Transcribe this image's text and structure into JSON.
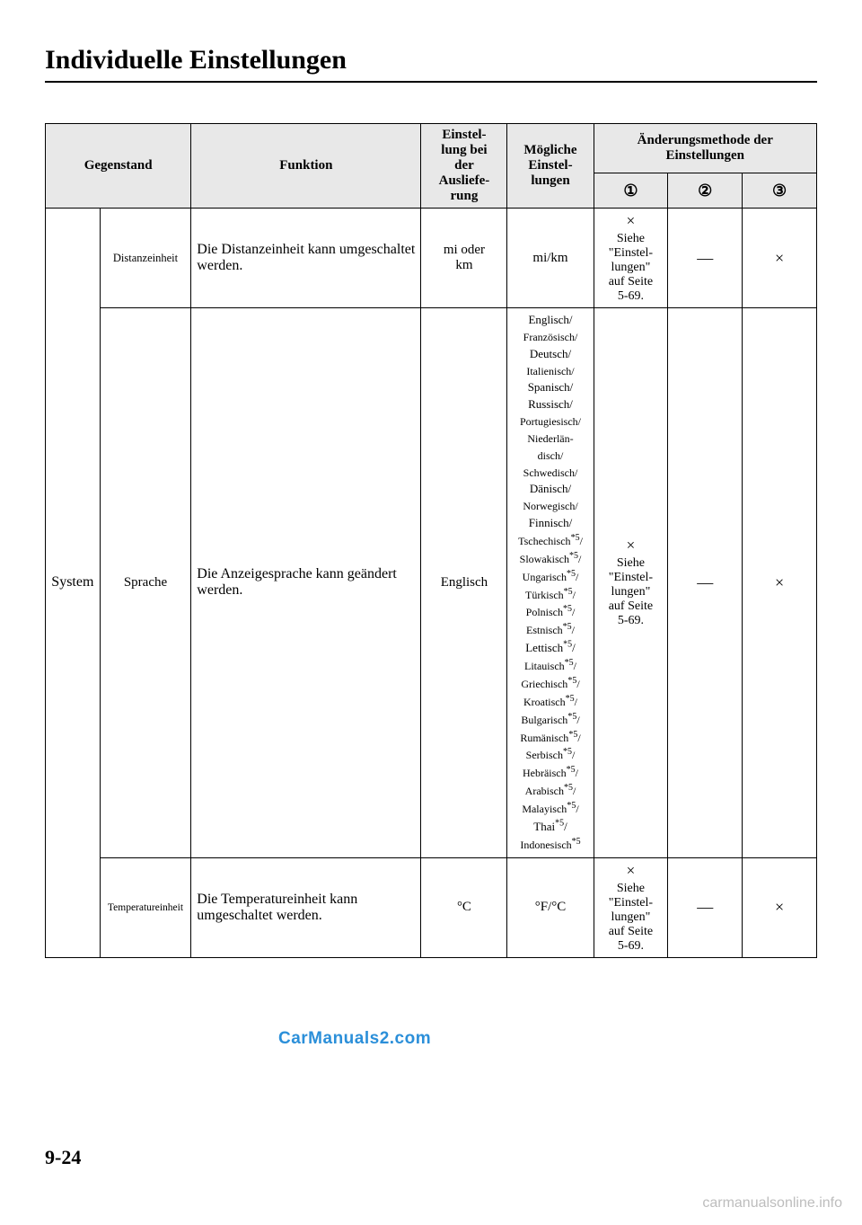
{
  "page_title": "Individuelle Einstellungen",
  "page_number": "9-24",
  "watermark_center": "CarManuals2.com",
  "watermark_corner": "carmanualsonline.info",
  "table": {
    "headers": {
      "gegenstand": "Gegenstand",
      "funktion": "Funktion",
      "default_setting": "Einstel-\nlung bei\nder\nAusliefe-\nrung",
      "possible_settings": "Mögliche\nEinstel-\nlungen",
      "change_method": "Änderungsmethode der\nEinstellungen",
      "circled_1": "①",
      "circled_2": "②",
      "circled_3": "③"
    },
    "category": "System",
    "rows": [
      {
        "item": "Distanzeinheit",
        "function": "Die Distanzeinheit kann umgeschaltet werden.",
        "default": "mi oder\nkm",
        "possible": "mi/km",
        "method1_x": "×",
        "method1_text": "Siehe\n\"Einstel-\nlungen\"\nauf Seite\n5-69.",
        "method2": "―",
        "method3": "×"
      },
      {
        "item": "Sprache",
        "function": "Die Anzeigesprache kann geändert werden.",
        "default": "Englisch",
        "possible_languages": "Englisch/\nFranzösisch/\nDeutsch/\nItalienisch/\nSpanisch/\nRussisch/\nPortugiesisch/\nNiederlän-\ndisch/\nSchwedisch/\nDänisch/\nNorwegisch/\nFinnisch/",
        "method1_x": "×",
        "method1_text": "Siehe\n\"Einstel-\nlungen\"\nauf Seite\n5-69.",
        "method2": "―",
        "method3": "×"
      },
      {
        "item": "Temperatureinheit",
        "function": "Die Temperatureinheit kann umgeschaltet werden.",
        "default": "°C",
        "possible": "°F/°C",
        "method1_x": "×",
        "method1_text": "Siehe\n\"Einstel-\nlungen\"\nauf Seite\n5-69.",
        "method2": "―",
        "method3": "×"
      }
    ]
  }
}
